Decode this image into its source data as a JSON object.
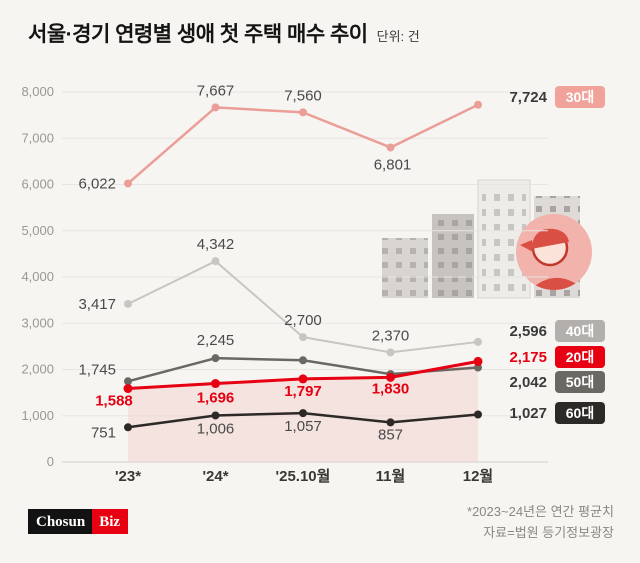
{
  "header": {
    "title": "서울·경기 연령별 생애 첫 주택 매수 추이",
    "unit_label": "단위: 건"
  },
  "chart_data": {
    "type": "line",
    "title": "서울·경기 연령별 생애 첫 주택 매수 추이",
    "unit": "건",
    "categories": [
      "'23*",
      "'24*",
      "'25.10월",
      "11월",
      "12월"
    ],
    "y_axis": {
      "min": 0,
      "max": 8000,
      "step": 1000,
      "tick_labels": [
        "0",
        "1,000",
        "2,000",
        "3,000",
        "4,000",
        "5,000",
        "6,000",
        "7,000",
        "8,000"
      ],
      "grid": true
    },
    "legend_position": "right",
    "series": [
      {
        "id": "30s",
        "name": "30대",
        "color": "#eb9e97",
        "badge_color": "#f0a29b",
        "label_color": "#4a4a4a",
        "values": [
          6022,
          7667,
          7560,
          6801,
          7724
        ],
        "point_labels": [
          "6,022",
          "7,667",
          "7,560",
          "6,801"
        ],
        "end_label": "7,724"
      },
      {
        "id": "40s",
        "name": "40대",
        "color": "#c8c5c2",
        "badge_color": "#b3afac",
        "label_color": "#4a4a4a",
        "values": [
          3417,
          4342,
          2700,
          2370,
          2596
        ],
        "point_labels": [
          "3,417",
          "4,342",
          "2,700",
          "2,370"
        ],
        "end_label": "2,596"
      },
      {
        "id": "20s",
        "name": "20대",
        "color": "#e60012",
        "badge_color": "#e60012",
        "label_color": "#e60012",
        "values": [
          1588,
          1696,
          1797,
          1830,
          2175
        ],
        "point_labels": [
          "1,588",
          "1,696",
          "1,797",
          "1,830"
        ],
        "end_label": "2,175",
        "area_fill": true
      },
      {
        "id": "50s",
        "name": "50대",
        "color": "#6b6763",
        "badge_color": "#6b6763",
        "label_color": "#4a4a4a",
        "values": [
          1745,
          2245,
          2200,
          1900,
          2042
        ],
        "point_labels": [
          "1,745",
          "2,245",
          "",
          ""
        ],
        "end_label": "2,042"
      },
      {
        "id": "60s",
        "name": "60대",
        "color": "#2c2927",
        "badge_color": "#2c2927",
        "label_color": "#4a4a4a",
        "values": [
          751,
          1006,
          1057,
          857,
          1027
        ],
        "point_labels": [
          "751",
          "1,006",
          "1,057",
          "857"
        ],
        "end_label": "1,027"
      }
    ]
  },
  "footer": {
    "logo_part1": "Chosun",
    "logo_part2": "Biz",
    "notes": [
      "*2023~24년은 연간 평균치",
      "자료=법원 등기정보광장"
    ]
  }
}
